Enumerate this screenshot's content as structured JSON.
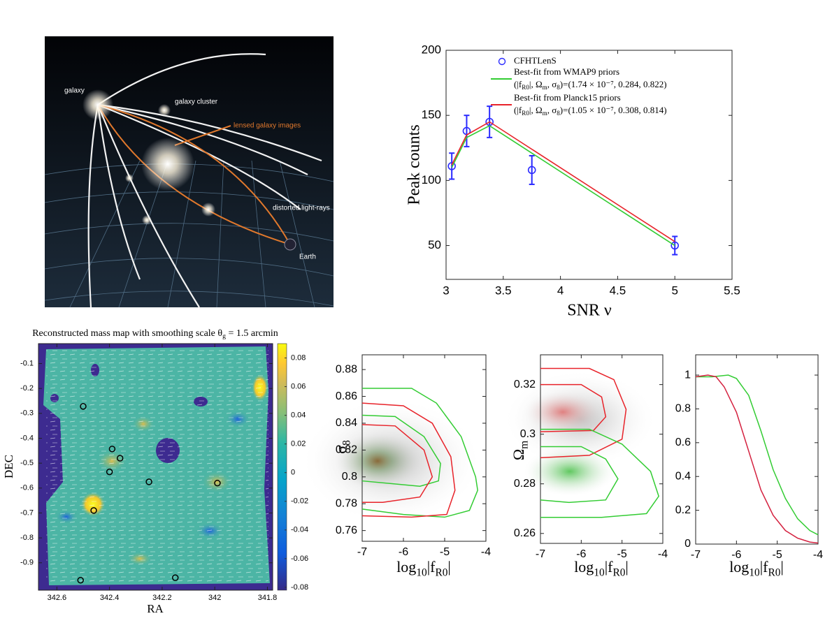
{
  "illustration": {
    "labels": [
      "galaxy",
      "galaxy cluster",
      "lensed galaxy images",
      "distorted light-rays",
      "Earth"
    ]
  },
  "chart_data": [
    {
      "type": "line",
      "xlabel": "SNR ν",
      "ylabel": "Peak counts",
      "xlim": [
        3,
        5.5
      ],
      "xticks": [
        3,
        3.5,
        4,
        4.5,
        5,
        5.5
      ],
      "ylim": [
        24,
        200
      ],
      "yticks": [
        50,
        100,
        150,
        200
      ],
      "legend": "upper left",
      "series": [
        {
          "name": "CFHTLenS",
          "color": "#2a2aff",
          "style": "markers",
          "x": [
            3.05,
            3.18,
            3.38,
            3.75,
            5.0
          ],
          "values": [
            111,
            138,
            145,
            108,
            50
          ],
          "errors": [
            10,
            12,
            12,
            11,
            7
          ]
        },
        {
          "name": "Best-fit from WMAP9 priors",
          "params": [
            "(|f",
            "R0",
            "|, Ω",
            "m",
            ", σ",
            "8",
            ")=(1.74 × 10⁻⁷, 0.284, 0.822)"
          ],
          "color": "#33cc33",
          "style": "line",
          "x": [
            3.05,
            3.18,
            3.38,
            5.0
          ],
          "values": [
            110,
            133,
            142,
            50
          ]
        },
        {
          "name": "Best-fit from Planck15 priors",
          "params": [
            "(|f",
            "R0",
            "|, Ω",
            "m",
            ", σ",
            "8",
            ")=(1.05 × 10⁻⁷, 0.308, 0.814)"
          ],
          "color": "#e8232a",
          "style": "line",
          "x": [
            3.05,
            3.18,
            3.38,
            5.0
          ],
          "values": [
            112,
            135,
            145,
            53
          ]
        }
      ]
    },
    {
      "type": "scatter",
      "title": [
        "Reconstructed mass map with smoothing scale θ",
        "g",
        " = 1.5 arcmin"
      ],
      "xlabel": "RA",
      "ylabel": "DEC",
      "xlim": [
        342.67,
        341.78
      ],
      "xticks": [
        342.6,
        342.4,
        342.2,
        342,
        341.8
      ],
      "ylim": [
        -1.01,
        -0.02
      ],
      "yticks": [
        -0.1,
        -0.2,
        -0.3,
        -0.4,
        -0.5,
        -0.6,
        -0.7,
        -0.8,
        -0.9
      ],
      "x": [
        342.5,
        342.39,
        342.36,
        342.4,
        342.25,
        341.99,
        342.46,
        342.51,
        342.15
      ],
      "values": [
        -0.272,
        -0.443,
        -0.48,
        -0.535,
        -0.575,
        -0.58,
        -0.69,
        -0.97,
        -0.96
      ],
      "color": "#000000",
      "colorbar": {
        "lim": [
          -0.082,
          0.09
        ],
        "ticks": [
          0.08,
          0.06,
          0.04,
          0.02,
          0,
          -0.02,
          -0.04,
          -0.06,
          -0.08
        ]
      }
    },
    {
      "type": "contour",
      "xlabel": [
        "log",
        "10",
        "|f",
        "R0",
        "|"
      ],
      "ylabel": [
        "σ",
        "8"
      ],
      "xlim": [
        -7,
        -4
      ],
      "xticks": [
        -7,
        -6,
        -5,
        -4
      ],
      "ylim": [
        0.752,
        0.891
      ],
      "yticks": [
        0.76,
        0.78,
        0.8,
        0.82,
        0.84,
        0.86,
        0.88
      ],
      "series": [
        {
          "color": "#33cc33",
          "x": [
            -7,
            -5.8,
            -5.2,
            -4.6,
            -4.25,
            -4.2,
            -4.4,
            -5.0,
            -6.0,
            -7
          ],
          "values": [
            0.866,
            0.866,
            0.855,
            0.83,
            0.8,
            0.79,
            0.775,
            0.77,
            0.772,
            0.776
          ]
        },
        {
          "color": "#e8232a",
          "x": [
            -7,
            -6.0,
            -5.3,
            -4.85,
            -4.75,
            -4.95,
            -5.8,
            -7
          ],
          "values": [
            0.855,
            0.853,
            0.84,
            0.815,
            0.79,
            0.772,
            0.77,
            0.771
          ]
        },
        {
          "color": "#33cc33",
          "x": [
            -7,
            -6.2,
            -5.5,
            -5.1,
            -5.15,
            -5.6,
            -6.3,
            -7
          ],
          "values": [
            0.846,
            0.845,
            0.83,
            0.81,
            0.797,
            0.793,
            0.795,
            0.797
          ]
        },
        {
          "color": "#e8232a",
          "x": [
            -7,
            -6.2,
            -5.5,
            -5.3,
            -5.6,
            -6.5,
            -7
          ],
          "values": [
            0.839,
            0.838,
            0.82,
            0.8,
            0.785,
            0.781,
            0.781
          ]
        }
      ]
    },
    {
      "type": "contour",
      "xlabel": [
        "log",
        "10",
        "|f",
        "R0",
        "|"
      ],
      "ylabel": [
        "Ω",
        "m"
      ],
      "xlim": [
        -7,
        -4
      ],
      "xticks": [
        -7,
        -6,
        -5,
        -4
      ],
      "ylim": [
        0.256,
        0.332
      ],
      "yticks": [
        0.26,
        0.28,
        0.3,
        0.32
      ],
      "series": [
        {
          "color": "#e8232a",
          "x": [
            -7,
            -5.8,
            -5.2,
            -4.9,
            -5.0,
            -5.8,
            -7
          ],
          "values": [
            0.3265,
            0.3265,
            0.322,
            0.31,
            0.298,
            0.2915,
            0.2905
          ]
        },
        {
          "color": "#e8232a",
          "x": [
            -7,
            -6.0,
            -5.5,
            -5.4,
            -5.7,
            -7
          ],
          "values": [
            0.32,
            0.32,
            0.315,
            0.307,
            0.3015,
            0.301
          ]
        },
        {
          "color": "#33cc33",
          "x": [
            -7,
            -5.8,
            -5.0,
            -4.3,
            -4.1,
            -4.4,
            -5.5,
            -7
          ],
          "values": [
            0.302,
            0.302,
            0.296,
            0.285,
            0.275,
            0.268,
            0.2665,
            0.2665
          ]
        },
        {
          "color": "#33cc33",
          "x": [
            -7,
            -6.0,
            -5.4,
            -5.1,
            -5.4,
            -6.3,
            -7
          ],
          "values": [
            0.295,
            0.295,
            0.29,
            0.282,
            0.2735,
            0.2725,
            0.2735
          ]
        }
      ]
    },
    {
      "type": "contour",
      "xlabel": [
        "log",
        "10",
        "|f",
        "R0",
        "|"
      ],
      "xlim": [
        -7,
        -4
      ],
      "xticks": [
        -7,
        -6,
        -5,
        -4
      ],
      "ylim": [
        0,
        1.12
      ],
      "yticks": [
        0,
        0.2,
        0.4,
        0.6,
        0.8,
        1
      ],
      "series": [
        {
          "color": "#33cc33",
          "x": [
            -7,
            -6.6,
            -6.2,
            -6.0,
            -5.7,
            -5.4,
            -5.1,
            -4.8,
            -4.5,
            -4.2,
            -4
          ],
          "values": [
            0.99,
            0.99,
            1.0,
            0.98,
            0.88,
            0.67,
            0.44,
            0.27,
            0.15,
            0.08,
            0.055
          ]
        },
        {
          "color": "#d4213f",
          "x": [
            -7,
            -6.7,
            -6.5,
            -6.3,
            -6.0,
            -5.7,
            -5.4,
            -5.1,
            -4.8,
            -4.5,
            -4.2,
            -4
          ],
          "values": [
            0.99,
            1.0,
            0.99,
            0.93,
            0.78,
            0.55,
            0.32,
            0.17,
            0.08,
            0.035,
            0.012,
            0.006
          ]
        }
      ]
    }
  ]
}
